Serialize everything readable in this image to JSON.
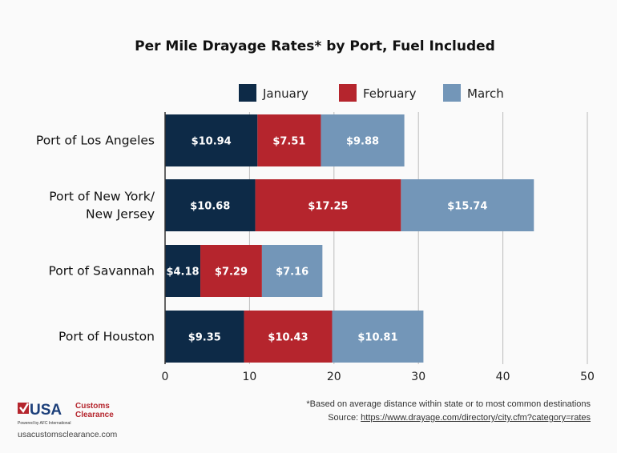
{
  "chart_data": {
    "type": "bar",
    "orientation": "horizontal",
    "stacked": true,
    "title": "Per Mile Drayage Rates* by Port, Fuel Included",
    "categories": [
      "Port of Los Angeles",
      "Port of New York/\nNew Jersey",
      "Port of Savannah",
      "Port of Houston"
    ],
    "series": [
      {
        "name": "January",
        "color": "#0d2a47",
        "values": [
          10.94,
          10.68,
          4.18,
          9.35
        ],
        "labels": [
          "$10.94",
          "$10.68",
          "$4.18",
          "$9.35"
        ]
      },
      {
        "name": "February",
        "color": "#b5252d",
        "values": [
          7.51,
          17.25,
          7.29,
          10.43
        ],
        "labels": [
          "$7.51",
          "$17.25",
          "$7.29",
          "$10.43"
        ]
      },
      {
        "name": "March",
        "color": "#7396b8",
        "values": [
          9.88,
          15.74,
          7.16,
          10.81
        ],
        "labels": [
          "$9.88",
          "$15.74",
          "$7.16",
          "$10.81"
        ]
      }
    ],
    "xlim": [
      0,
      50
    ],
    "xticks": [
      0,
      10,
      20,
      30,
      40,
      50
    ],
    "grid": true,
    "legend": "top"
  },
  "footnote": "*Based on average distance within state or to most common destinations",
  "source_label": "Source: ",
  "source_link": "https://www.drayage.com/directory/city.cfm?category=rates",
  "logo": {
    "text1": "USA",
    "text2": "Customs",
    "text3": "Clearance",
    "tagline": "Powered by AFC International"
  },
  "site": "usacustomsclearance.com"
}
